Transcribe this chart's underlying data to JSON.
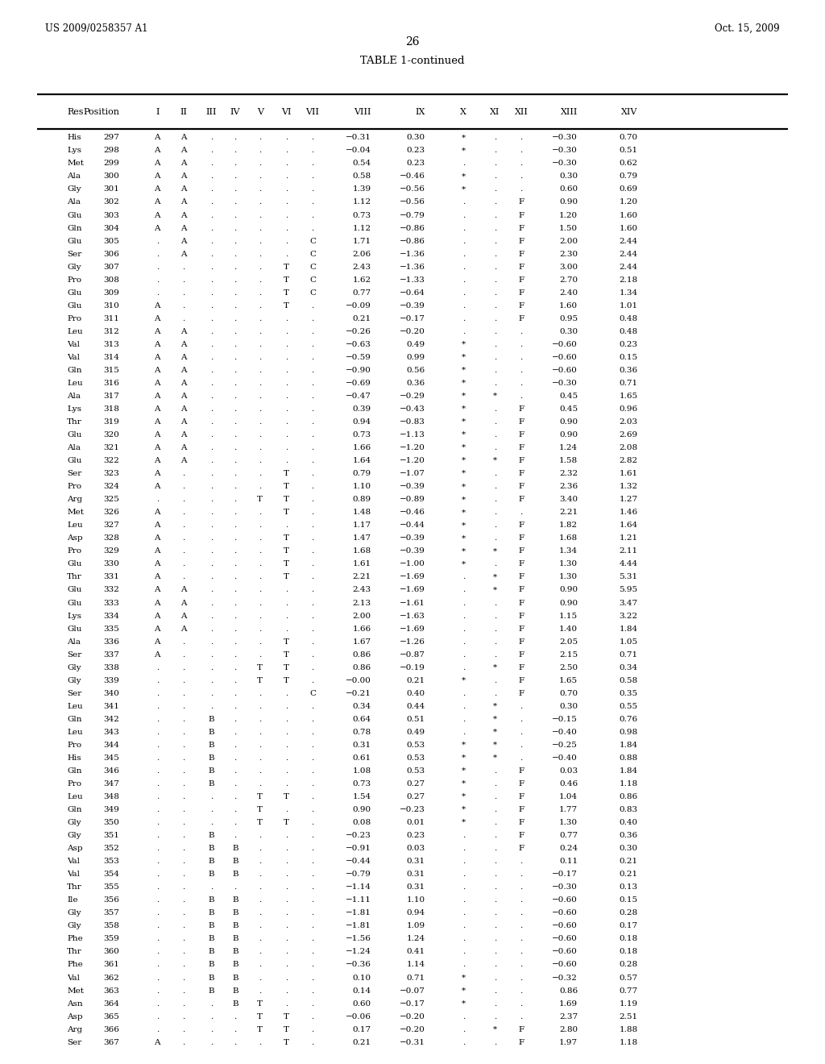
{
  "header_left": "US 2009/0258357 A1",
  "header_right": "Oct. 15, 2009",
  "page_number": "26",
  "table_title": "TABLE 1-continued",
  "columns": [
    "Res",
    "Position",
    "I",
    "II",
    "III",
    "IV",
    "V",
    "VI",
    "VII",
    "VIII",
    "IX",
    "X",
    "XI",
    "XII",
    "XIII",
    "XIV"
  ],
  "rows": [
    [
      "His",
      "297",
      "A",
      "A",
      ".",
      ".",
      ".",
      ".",
      ".",
      "−0.31",
      "0.30",
      "*",
      ".",
      ".",
      "−0.30",
      "0.70"
    ],
    [
      "Lys",
      "298",
      "A",
      "A",
      ".",
      ".",
      ".",
      ".",
      ".",
      "−0.04",
      "0.23",
      "*",
      ".",
      ".",
      "−0.30",
      "0.51"
    ],
    [
      "Met",
      "299",
      "A",
      "A",
      ".",
      ".",
      ".",
      ".",
      ".",
      "0.54",
      "0.23",
      ".",
      ".",
      ".",
      "−0.30",
      "0.62"
    ],
    [
      "Ala",
      "300",
      "A",
      "A",
      ".",
      ".",
      ".",
      ".",
      ".",
      "0.58",
      "−0.46",
      "*",
      ".",
      ".",
      "0.30",
      "0.79"
    ],
    [
      "Gly",
      "301",
      "A",
      "A",
      ".",
      ".",
      ".",
      ".",
      ".",
      "1.39",
      "−0.56",
      "*",
      ".",
      ".",
      "0.60",
      "0.69"
    ],
    [
      "Ala",
      "302",
      "A",
      "A",
      ".",
      ".",
      ".",
      ".",
      ".",
      "1.12",
      "−0.56",
      ".",
      ".",
      "F",
      "0.90",
      "1.20"
    ],
    [
      "Glu",
      "303",
      "A",
      "A",
      ".",
      ".",
      ".",
      ".",
      ".",
      "0.73",
      "−0.79",
      ".",
      ".",
      "F",
      "1.20",
      "1.60"
    ],
    [
      "Gln",
      "304",
      "A",
      "A",
      ".",
      ".",
      ".",
      ".",
      ".",
      "1.12",
      "−0.86",
      ".",
      ".",
      "F",
      "1.50",
      "1.60"
    ],
    [
      "Glu",
      "305",
      ".",
      "A",
      ".",
      ".",
      ".",
      ".",
      "C",
      "1.71",
      "−0.86",
      ".",
      ".",
      "F",
      "2.00",
      "2.44"
    ],
    [
      "Ser",
      "306",
      ".",
      "A",
      ".",
      ".",
      ".",
      ".",
      "C",
      "2.06",
      "−1.36",
      ".",
      ".",
      "F",
      "2.30",
      "2.44"
    ],
    [
      "Gly",
      "307",
      ".",
      ".",
      ".",
      ".",
      ".",
      "T",
      "C",
      "2.43",
      "−1.36",
      ".",
      ".",
      "F",
      "3.00",
      "2.44"
    ],
    [
      "Pro",
      "308",
      ".",
      ".",
      ".",
      ".",
      ".",
      "T",
      "C",
      "1.62",
      "−1.33",
      ".",
      ".",
      "F",
      "2.70",
      "2.18"
    ],
    [
      "Glu",
      "309",
      ".",
      ".",
      ".",
      ".",
      ".",
      "T",
      "C",
      "0.77",
      "−0.64",
      ".",
      ".",
      "F",
      "2.40",
      "1.34"
    ],
    [
      "Glu",
      "310",
      "A",
      ".",
      ".",
      ".",
      ".",
      "T",
      ".",
      "−0.09",
      "−0.39",
      ".",
      ".",
      "F",
      "1.60",
      "1.01"
    ],
    [
      "Pro",
      "311",
      "A",
      ".",
      ".",
      ".",
      ".",
      ".",
      ".",
      "0.21",
      "−0.17",
      ".",
      ".",
      "F",
      "0.95",
      "0.48"
    ],
    [
      "Leu",
      "312",
      "A",
      "A",
      ".",
      ".",
      ".",
      ".",
      ".",
      "−0.26",
      "−0.20",
      ".",
      ".",
      ".",
      "0.30",
      "0.48"
    ],
    [
      "Val",
      "313",
      "A",
      "A",
      ".",
      ".",
      ".",
      ".",
      ".",
      "−0.63",
      "0.49",
      "*",
      ".",
      ".",
      "−0.60",
      "0.23"
    ],
    [
      "Val",
      "314",
      "A",
      "A",
      ".",
      ".",
      ".",
      ".",
      ".",
      "−0.59",
      "0.99",
      "*",
      ".",
      ".",
      "−0.60",
      "0.15"
    ],
    [
      "Gln",
      "315",
      "A",
      "A",
      ".",
      ".",
      ".",
      ".",
      ".",
      "−0.90",
      "0.56",
      "*",
      ".",
      ".",
      "−0.60",
      "0.36"
    ],
    [
      "Leu",
      "316",
      "A",
      "A",
      ".",
      ".",
      ".",
      ".",
      ".",
      "−0.69",
      "0.36",
      "*",
      ".",
      ".",
      "−0.30",
      "0.71"
    ],
    [
      "Ala",
      "317",
      "A",
      "A",
      ".",
      ".",
      ".",
      ".",
      ".",
      "−0.47",
      "−0.29",
      "*",
      "*",
      ".",
      "0.45",
      "1.65"
    ],
    [
      "Lys",
      "318",
      "A",
      "A",
      ".",
      ".",
      ".",
      ".",
      ".",
      "0.39",
      "−0.43",
      "*",
      ".",
      "F",
      "0.45",
      "0.96"
    ],
    [
      "Thr",
      "319",
      "A",
      "A",
      ".",
      ".",
      ".",
      ".",
      ".",
      "0.94",
      "−0.83",
      "*",
      ".",
      "F",
      "0.90",
      "2.03"
    ],
    [
      "Glu",
      "320",
      "A",
      "A",
      ".",
      ".",
      ".",
      ".",
      ".",
      "0.73",
      "−1.13",
      "*",
      ".",
      "F",
      "0.90",
      "2.69"
    ],
    [
      "Ala",
      "321",
      "A",
      "A",
      ".",
      ".",
      ".",
      ".",
      ".",
      "1.66",
      "−1.20",
      "*",
      ".",
      "F",
      "1.24",
      "2.08"
    ],
    [
      "Glu",
      "322",
      "A",
      "A",
      ".",
      ".",
      ".",
      ".",
      ".",
      "1.64",
      "−1.20",
      "*",
      "*",
      "F",
      "1.58",
      "2.82"
    ],
    [
      "Ser",
      "323",
      "A",
      ".",
      ".",
      ".",
      ".",
      "T",
      ".",
      "0.79",
      "−1.07",
      "*",
      ".",
      "F",
      "2.32",
      "1.61"
    ],
    [
      "Pro",
      "324",
      "A",
      ".",
      ".",
      ".",
      ".",
      "T",
      ".",
      "1.10",
      "−0.39",
      "*",
      ".",
      "F",
      "2.36",
      "1.32"
    ],
    [
      "Arg",
      "325",
      ".",
      ".",
      ".",
      ".",
      "T",
      "T",
      ".",
      "0.89",
      "−0.89",
      "*",
      ".",
      "F",
      "3.40",
      "1.27"
    ],
    [
      "Met",
      "326",
      "A",
      ".",
      ".",
      ".",
      ".",
      "T",
      ".",
      "1.48",
      "−0.46",
      "*",
      ".",
      ".",
      "2.21",
      "1.46"
    ],
    [
      "Leu",
      "327",
      "A",
      ".",
      ".",
      ".",
      ".",
      ".",
      ".",
      "1.17",
      "−0.44",
      "*",
      ".",
      "F",
      "1.82",
      "1.64"
    ],
    [
      "Asp",
      "328",
      "A",
      ".",
      ".",
      ".",
      ".",
      "T",
      ".",
      "1.47",
      "−0.39",
      "*",
      ".",
      "F",
      "1.68",
      "1.21"
    ],
    [
      "Pro",
      "329",
      "A",
      ".",
      ".",
      ".",
      ".",
      "T",
      ".",
      "1.68",
      "−0.39",
      "*",
      "*",
      "F",
      "1.34",
      "2.11"
    ],
    [
      "Glu",
      "330",
      "A",
      ".",
      ".",
      ".",
      ".",
      "T",
      ".",
      "1.61",
      "−1.00",
      "*",
      ".",
      "F",
      "1.30",
      "4.44"
    ],
    [
      "Thr",
      "331",
      "A",
      ".",
      ".",
      ".",
      ".",
      "T",
      ".",
      "2.21",
      "−1.69",
      ".",
      "*",
      "F",
      "1.30",
      "5.31"
    ],
    [
      "Glu",
      "332",
      "A",
      "A",
      ".",
      ".",
      ".",
      ".",
      ".",
      "2.43",
      "−1.69",
      ".",
      "*",
      "F",
      "0.90",
      "5.95"
    ],
    [
      "Glu",
      "333",
      "A",
      "A",
      ".",
      ".",
      ".",
      ".",
      ".",
      "2.13",
      "−1.61",
      ".",
      ".",
      "F",
      "0.90",
      "3.47"
    ],
    [
      "Lys",
      "334",
      "A",
      "A",
      ".",
      ".",
      ".",
      ".",
      ".",
      "2.00",
      "−1.63",
      ".",
      ".",
      "F",
      "1.15",
      "3.22"
    ],
    [
      "Glu",
      "335",
      "A",
      "A",
      ".",
      ".",
      ".",
      ".",
      ".",
      "1.66",
      "−1.69",
      ".",
      ".",
      "F",
      "1.40",
      "1.84"
    ],
    [
      "Ala",
      "336",
      "A",
      ".",
      ".",
      ".",
      ".",
      "T",
      ".",
      "1.67",
      "−1.26",
      ".",
      ".",
      "F",
      "2.05",
      "1.05"
    ],
    [
      "Ser",
      "337",
      "A",
      ".",
      ".",
      ".",
      ".",
      "T",
      ".",
      "0.86",
      "−0.87",
      ".",
      ".",
      "F",
      "2.15",
      "0.71"
    ],
    [
      "Gly",
      "338",
      ".",
      ".",
      ".",
      ".",
      "T",
      "T",
      ".",
      "0.86",
      "−0.19",
      ".",
      "*",
      "F",
      "2.50",
      "0.34"
    ],
    [
      "Gly",
      "339",
      ".",
      ".",
      ".",
      ".",
      "T",
      "T",
      ".",
      "−0.00",
      "0.21",
      "*",
      ".",
      "F",
      "1.65",
      "0.58"
    ],
    [
      "Ser",
      "340",
      ".",
      ".",
      ".",
      ".",
      ".",
      ".",
      "C",
      "−0.21",
      "0.40",
      ".",
      ".",
      "F",
      "0.70",
      "0.35"
    ],
    [
      "Leu",
      "341",
      ".",
      ".",
      ".",
      ".",
      ".",
      ".",
      ".",
      "0.34",
      "0.44",
      ".",
      "*",
      ".",
      "0.30",
      "0.55"
    ],
    [
      "Gln",
      "342",
      ".",
      ".",
      "B",
      ".",
      ".",
      ".",
      ".",
      "0.64",
      "0.51",
      ".",
      "*",
      ".",
      "−0.15",
      "0.76"
    ],
    [
      "Leu",
      "343",
      ".",
      ".",
      "B",
      ".",
      ".",
      ".",
      ".",
      "0.78",
      "0.49",
      ".",
      "*",
      ".",
      "−0.40",
      "0.98"
    ],
    [
      "Pro",
      "344",
      ".",
      ".",
      "B",
      ".",
      ".",
      ".",
      ".",
      "0.31",
      "0.53",
      "*",
      "*",
      ".",
      "−0.25",
      "1.84"
    ],
    [
      "His",
      "345",
      ".",
      ".",
      "B",
      ".",
      ".",
      ".",
      ".",
      "0.61",
      "0.53",
      "*",
      "*",
      ".",
      "−0.40",
      "0.88"
    ],
    [
      "Gln",
      "346",
      ".",
      ".",
      "B",
      ".",
      ".",
      ".",
      ".",
      "1.08",
      "0.53",
      "*",
      ".",
      "F",
      "0.03",
      "1.84"
    ],
    [
      "Pro",
      "347",
      ".",
      ".",
      "B",
      ".",
      ".",
      ".",
      ".",
      "0.73",
      "0.27",
      "*",
      ".",
      "F",
      "0.46",
      "1.18"
    ],
    [
      "Leu",
      "348",
      ".",
      ".",
      ".",
      ".",
      "T",
      "T",
      ".",
      "1.54",
      "0.27",
      "*",
      ".",
      "F",
      "1.04",
      "0.86"
    ],
    [
      "Gln",
      "349",
      ".",
      ".",
      ".",
      ".",
      "T",
      ".",
      ".",
      "0.90",
      "−0.23",
      "*",
      ".",
      "F",
      "1.77",
      "0.83"
    ],
    [
      "Gly",
      "350",
      ".",
      ".",
      ".",
      ".",
      "T",
      "T",
      ".",
      "0.08",
      "0.01",
      "*",
      ".",
      "F",
      "1.30",
      "0.40"
    ],
    [
      "Gly",
      "351",
      ".",
      ".",
      "B",
      ".",
      ".",
      ".",
      ".",
      "−0.23",
      "0.23",
      ".",
      ".",
      "F",
      "0.77",
      "0.36"
    ],
    [
      "Asp",
      "352",
      ".",
      ".",
      "B",
      "B",
      ".",
      ".",
      ".",
      "−0.91",
      "0.03",
      ".",
      ".",
      "F",
      "0.24",
      "0.30"
    ],
    [
      "Val",
      "353",
      ".",
      ".",
      "B",
      "B",
      ".",
      ".",
      ".",
      "−0.44",
      "0.31",
      ".",
      ".",
      ".",
      "0.11",
      "0.21"
    ],
    [
      "Val",
      "354",
      ".",
      ".",
      "B",
      "B",
      ".",
      ".",
      ".",
      "−0.79",
      "0.31",
      ".",
      ".",
      ".",
      "−0.17",
      "0.21"
    ],
    [
      "Thr",
      "355",
      ".",
      ".",
      ".",
      ".",
      ".",
      ".",
      ".",
      "−1.14",
      "0.31",
      ".",
      ".",
      ".",
      "−0.30",
      "0.13"
    ],
    [
      "Ile",
      "356",
      ".",
      ".",
      "B",
      "B",
      ".",
      ".",
      ".",
      "−1.11",
      "1.10",
      ".",
      ".",
      ".",
      "−0.60",
      "0.15"
    ],
    [
      "Gly",
      "357",
      ".",
      ".",
      "B",
      "B",
      ".",
      ".",
      ".",
      "−1.81",
      "0.94",
      ".",
      ".",
      ".",
      "−0.60",
      "0.28"
    ],
    [
      "Gly",
      "358",
      ".",
      ".",
      "B",
      "B",
      ".",
      ".",
      ".",
      "−1.81",
      "1.09",
      ".",
      ".",
      ".",
      "−0.60",
      "0.17"
    ],
    [
      "Phe",
      "359",
      ".",
      ".",
      "B",
      "B",
      ".",
      ".",
      ".",
      "−1.56",
      "1.24",
      ".",
      ".",
      ".",
      "−0.60",
      "0.18"
    ],
    [
      "Thr",
      "360",
      ".",
      ".",
      "B",
      "B",
      ".",
      ".",
      ".",
      "−1.24",
      "0.41",
      ".",
      ".",
      ".",
      "−0.60",
      "0.18"
    ],
    [
      "Phe",
      "361",
      ".",
      ".",
      "B",
      "B",
      ".",
      ".",
      ".",
      "−0.36",
      "1.14",
      ".",
      ".",
      ".",
      "−0.60",
      "0.28"
    ],
    [
      "Val",
      "362",
      ".",
      ".",
      "B",
      "B",
      ".",
      ".",
      ".",
      "0.10",
      "0.71",
      "*",
      ".",
      ".",
      "−0.32",
      "0.57"
    ],
    [
      "Met",
      "363",
      ".",
      ".",
      "B",
      "B",
      ".",
      ".",
      ".",
      "0.14",
      "−0.07",
      "*",
      ".",
      ".",
      "0.86",
      "0.77"
    ],
    [
      "Asn",
      "364",
      ".",
      ".",
      ".",
      "B",
      "T",
      ".",
      ".",
      "0.60",
      "−0.17",
      "*",
      ".",
      ".",
      "1.69",
      "1.19"
    ],
    [
      "Asp",
      "365",
      ".",
      ".",
      ".",
      ".",
      "T",
      "T",
      ".",
      "−0.06",
      "−0.20",
      ".",
      ".",
      ".",
      "2.37",
      "2.51"
    ],
    [
      "Arg",
      "366",
      ".",
      ".",
      ".",
      ".",
      "T",
      "T",
      ".",
      "0.17",
      "−0.20",
      ".",
      "*",
      "F",
      "2.80",
      "1.88"
    ],
    [
      "Ser",
      "367",
      "A",
      ".",
      ".",
      ".",
      ".",
      "T",
      ".",
      "0.21",
      "−0.31",
      ".",
      ".",
      "F",
      "1.97",
      "1.18"
    ]
  ]
}
